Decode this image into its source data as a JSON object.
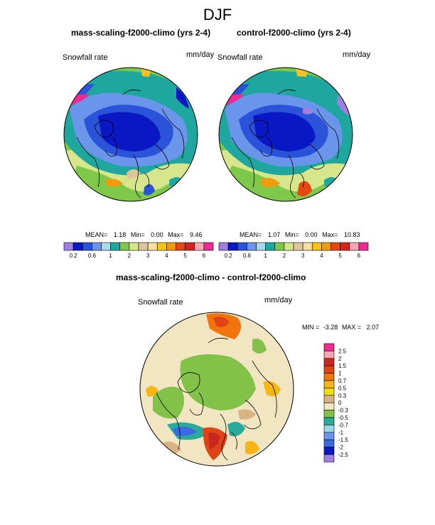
{
  "season": "DJF",
  "panels": [
    {
      "title": "mass-scaling-f2000-climo (yrs 2-4)",
      "variable": "Snowfall rate",
      "units": "mm/day",
      "stats": {
        "mean_label": "MEAN=",
        "mean": "1.18",
        "min_label": "Min=",
        "min": "0.00",
        "max_label": "Max=",
        "max": "9.46"
      }
    },
    {
      "title": "control-f2000-climo (yrs 2-4)",
      "variable": "Snowfall rate",
      "units": "mm/day",
      "stats": {
        "mean_label": "MEAN=",
        "mean": "1.07",
        "min_label": "Min=",
        "min": "0.00",
        "max_label": "Max=",
        "max": "10.83"
      }
    }
  ],
  "colorbar_top": {
    "labels": [
      "0.2",
      "0.6",
      "1",
      "2",
      "3",
      "4",
      "5",
      "6"
    ],
    "colors": [
      "#9f7fe0",
      "#0a17c4",
      "#2a53d9",
      "#6a95ea",
      "#a9d9ec",
      "#1ea79f",
      "#7ec94a",
      "#d7e68b",
      "#dfc59b",
      "#f4e1a2",
      "#f7c21c",
      "#f09a0d",
      "#e74812",
      "#d8231f",
      "#f6a7b2",
      "#ee2a92"
    ]
  },
  "diff_panel": {
    "title": "mass-scaling-f2000-climo - control-f2000-climo",
    "variable": "Snowfall rate",
    "units": "mm/day",
    "stats": {
      "min_label": "MIN =",
      "min": "-3.28",
      "max_label": "MAX =",
      "max": "2.07"
    }
  },
  "colorbar_diff": {
    "labels": [
      "2.5",
      "2",
      "1.5",
      "1",
      "0.7",
      "0.5",
      "0.3",
      "0",
      "-0.3",
      "-0.5",
      "-0.7",
      "-1",
      "-1.5",
      "-2",
      "-2.5"
    ],
    "colors": [
      "#ee2a92",
      "#f6a7b2",
      "#c82820",
      "#e04416",
      "#f2740c",
      "#f7b616",
      "#f0dc1a",
      "#d8b484",
      "#f2e6c2",
      "#82c248",
      "#2aaa9a",
      "#9ad8e6",
      "#6a95ea",
      "#3c6ae0",
      "#0a17c4",
      "#9f7fe0"
    ]
  }
}
